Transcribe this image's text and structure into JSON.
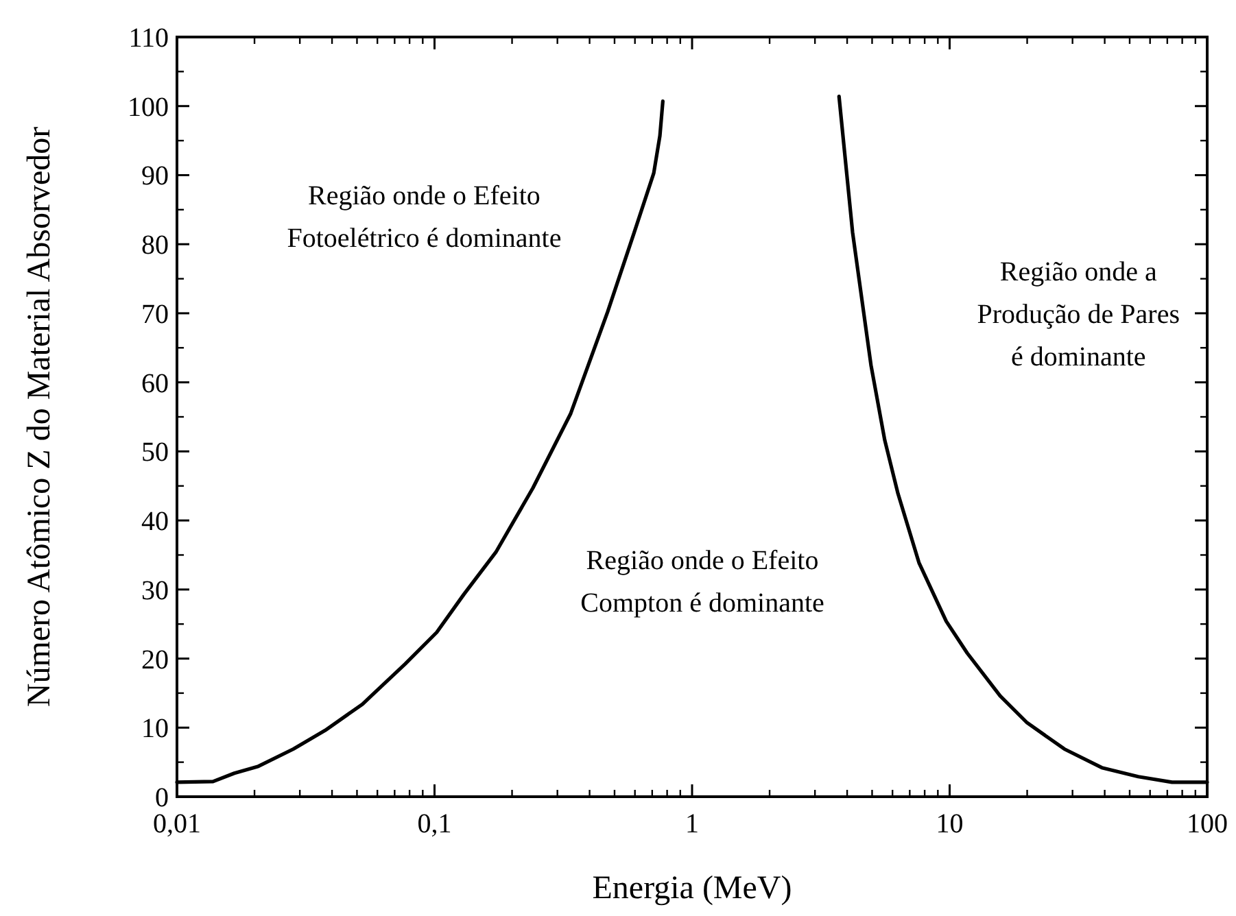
{
  "chart_data": {
    "type": "line",
    "xlabel": "Energia (MeV)",
    "ylabel": "Número Atômico Z do Material Absorvedor",
    "log": "x",
    "xlim": [
      0.01,
      100
    ],
    "ylim": [
      0,
      110
    ],
    "xticks": [
      {
        "value": 0.01,
        "label": "0,01"
      },
      {
        "value": 0.1,
        "label": "0,1"
      },
      1,
      10,
      100
    ],
    "yticks": [
      0,
      10,
      20,
      30,
      40,
      50,
      60,
      70,
      80,
      90,
      100,
      110
    ],
    "annotations": [
      "Região onde o Efeito\nFotoelétrico é dominante",
      "Região onde o Efeito\nCompton é dominante",
      "Região onde a\nProdução de Pares\né dominante"
    ],
    "series": [
      {
        "color": "#000000",
        "x": [
          0.01,
          0.0138,
          0.0167,
          0.0207,
          0.0283,
          0.0376,
          0.0525,
          0.0768,
          0.102,
          0.13,
          0.173,
          0.241,
          0.338,
          0.47,
          0.596,
          0.71,
          0.75,
          0.77
        ],
        "values": [
          2.1,
          2.2,
          3.4,
          4.4,
          6.9,
          9.6,
          13.4,
          19.2,
          23.8,
          29.3,
          35.4,
          44.7,
          55.5,
          70.2,
          81.7,
          90.3,
          95.7,
          100.7
        ]
      },
      {
        "color": "#000000",
        "x": [
          3.72,
          4.2,
          4.95,
          5.6,
          6.3,
          7.6,
          9.7,
          11.7,
          15.7,
          20,
          27.9,
          39,
          54,
          73,
          100
        ],
        "values": [
          101.4,
          81.7,
          62.5,
          51.6,
          43.9,
          33.9,
          25.4,
          20.8,
          14.6,
          10.7,
          6.9,
          4.2,
          2.9,
          2.1,
          2.1
        ]
      }
    ]
  }
}
